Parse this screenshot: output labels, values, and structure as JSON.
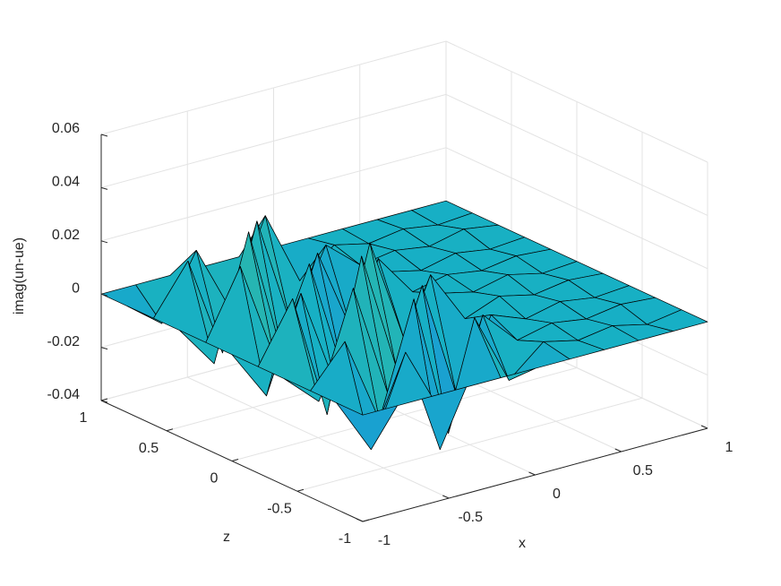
{
  "chart_data": {
    "type": "surface",
    "xlabel": "x",
    "ylabel": "z",
    "zlabel": "imag(un-ue)",
    "x": [
      -1,
      -0.8,
      -0.6,
      -0.4,
      -0.2,
      0,
      0.2,
      0.4,
      0.6,
      0.8,
      1
    ],
    "y": [
      -1,
      -0.8,
      -0.6,
      -0.4,
      -0.2,
      0,
      0.2,
      0.4,
      0.6,
      0.8,
      1
    ],
    "z": [
      [
        0,
        0,
        0,
        0,
        0,
        0,
        0,
        0,
        0,
        0,
        0
      ],
      [
        0,
        -0.021,
        0.012,
        -0.028,
        0.018,
        -0.009,
        0.002,
        -0.001,
        0.001,
        -0.002,
        0
      ],
      [
        0,
        0.015,
        -0.018,
        0.024,
        -0.03,
        0.011,
        -0.002,
        0.001,
        -0.001,
        0.001,
        0
      ],
      [
        0,
        -0.012,
        0.027,
        -0.016,
        0.021,
        -0.024,
        0.003,
        -0.002,
        0.001,
        -0.001,
        0
      ],
      [
        0,
        0.022,
        -0.025,
        0.031,
        -0.014,
        0.017,
        -0.003,
        0.002,
        -0.001,
        0.001,
        0
      ],
      [
        0,
        -0.019,
        0.016,
        -0.022,
        0.028,
        -0.012,
        0.002,
        -0.001,
        0.002,
        -0.001,
        0
      ],
      [
        0,
        0.025,
        -0.013,
        0.019,
        -0.026,
        0.014,
        -0.002,
        0.001,
        -0.001,
        0.001,
        0
      ],
      [
        0,
        -0.016,
        0.03,
        -0.021,
        0.015,
        -0.018,
        0.001,
        -0.002,
        0.001,
        -0.001,
        0
      ],
      [
        0,
        0.018,
        -0.02,
        0.026,
        -0.017,
        0.01,
        -0.001,
        0.001,
        -0.001,
        0.002,
        0
      ],
      [
        0,
        -0.01,
        0.014,
        -0.012,
        0.02,
        -0.008,
        0.002,
        -0.001,
        0.001,
        -0.001,
        0
      ],
      [
        0,
        0,
        0,
        0,
        0,
        0,
        0,
        0,
        0,
        0,
        0
      ]
    ],
    "xlim": [
      -1,
      1
    ],
    "ylim": [
      -1,
      1
    ],
    "zlim": [
      -0.04,
      0.06
    ],
    "xticks": [
      -1,
      -0.5,
      0,
      0.5,
      1
    ],
    "yticks": [
      -1,
      -0.5,
      0,
      0.5,
      1
    ],
    "zticks": [
      -0.04,
      -0.02,
      0,
      0.02,
      0.04,
      0.06
    ],
    "grid": true,
    "colormap": "parula",
    "edgecolor": "#000000"
  }
}
